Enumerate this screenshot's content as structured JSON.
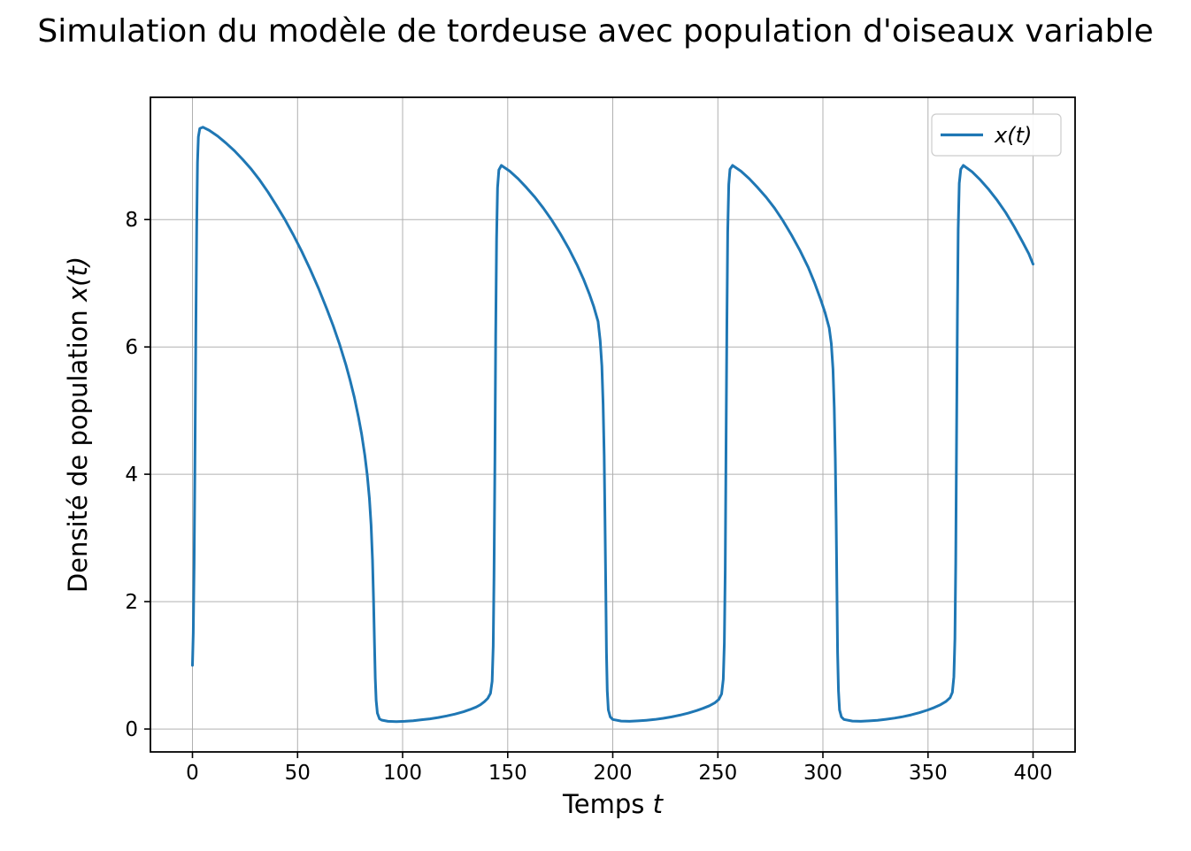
{
  "chart_data": {
    "type": "line",
    "title": "Simulation du modèle de tordeuse avec population d'oiseaux variable",
    "xlabel": "Temps t",
    "ylabel": "Densité de population x(t)",
    "xlabel_parts": {
      "prefix": "Temps ",
      "var": "t"
    },
    "ylabel_parts": {
      "prefix": "Densité de population ",
      "var": "x(t)"
    },
    "legend": {
      "position": "upper right",
      "entries": [
        {
          "label": "x(t)",
          "color": "#1f77b4"
        }
      ]
    },
    "grid": true,
    "grid_color": "#b0b0b0",
    "xlim": [
      -20,
      420
    ],
    "ylim": [
      -0.36,
      9.92
    ],
    "xticks": [
      0,
      50,
      100,
      150,
      200,
      250,
      300,
      350,
      400
    ],
    "yticks": [
      0,
      2,
      4,
      6,
      8
    ],
    "series": [
      {
        "name": "x(t)",
        "color": "#1f77b4",
        "points": [
          [
            0,
            1.0
          ],
          [
            0.4,
            1.5
          ],
          [
            0.8,
            2.6
          ],
          [
            1.2,
            4.2
          ],
          [
            1.6,
            6.2
          ],
          [
            2.0,
            7.9
          ],
          [
            2.4,
            8.9
          ],
          [
            2.8,
            9.3
          ],
          [
            3.5,
            9.43
          ],
          [
            5,
            9.45
          ],
          [
            8,
            9.4
          ],
          [
            12,
            9.31
          ],
          [
            16,
            9.2
          ],
          [
            20,
            9.08
          ],
          [
            24,
            8.94
          ],
          [
            28,
            8.79
          ],
          [
            32,
            8.62
          ],
          [
            36,
            8.43
          ],
          [
            40,
            8.22
          ],
          [
            44,
            8.0
          ],
          [
            48,
            7.76
          ],
          [
            52,
            7.5
          ],
          [
            56,
            7.22
          ],
          [
            60,
            6.92
          ],
          [
            64,
            6.59
          ],
          [
            67,
            6.33
          ],
          [
            70,
            6.04
          ],
          [
            73,
            5.72
          ],
          [
            75,
            5.48
          ],
          [
            77,
            5.21
          ],
          [
            79,
            4.9
          ],
          [
            80.5,
            4.63
          ],
          [
            82,
            4.3
          ],
          [
            83.2,
            3.98
          ],
          [
            84.2,
            3.62
          ],
          [
            85,
            3.2
          ],
          [
            85.7,
            2.65
          ],
          [
            86.2,
            2.0
          ],
          [
            86.6,
            1.35
          ],
          [
            87,
            0.8
          ],
          [
            87.4,
            0.45
          ],
          [
            88,
            0.25
          ],
          [
            89,
            0.16
          ],
          [
            90,
            0.14
          ],
          [
            93,
            0.12
          ],
          [
            97,
            0.115
          ],
          [
            101,
            0.12
          ],
          [
            105,
            0.13
          ],
          [
            109,
            0.145
          ],
          [
            113,
            0.16
          ],
          [
            117,
            0.18
          ],
          [
            121,
            0.205
          ],
          [
            125,
            0.235
          ],
          [
            129,
            0.27
          ],
          [
            132,
            0.305
          ],
          [
            135,
            0.345
          ],
          [
            137,
            0.38
          ],
          [
            139,
            0.43
          ],
          [
            140.5,
            0.48
          ],
          [
            141.8,
            0.56
          ],
          [
            142.6,
            0.75
          ],
          [
            143.1,
            1.3
          ],
          [
            143.5,
            2.4
          ],
          [
            143.9,
            4.2
          ],
          [
            144.3,
            6.2
          ],
          [
            144.7,
            7.7
          ],
          [
            145.2,
            8.5
          ],
          [
            145.8,
            8.78
          ],
          [
            147,
            8.85
          ],
          [
            151,
            8.76
          ],
          [
            155,
            8.64
          ],
          [
            159,
            8.5
          ],
          [
            163,
            8.35
          ],
          [
            167,
            8.18
          ],
          [
            171,
            7.99
          ],
          [
            175,
            7.78
          ],
          [
            179,
            7.55
          ],
          [
            183,
            7.29
          ],
          [
            186,
            7.07
          ],
          [
            189,
            6.82
          ],
          [
            191,
            6.63
          ],
          [
            193,
            6.4
          ],
          [
            194,
            6.1
          ],
          [
            194.8,
            5.7
          ],
          [
            195.4,
            5.1
          ],
          [
            195.9,
            4.3
          ],
          [
            196.3,
            3.3
          ],
          [
            196.7,
            2.1
          ],
          [
            197,
            1.2
          ],
          [
            197.4,
            0.6
          ],
          [
            197.9,
            0.3
          ],
          [
            198.8,
            0.19
          ],
          [
            200,
            0.15
          ],
          [
            204,
            0.125
          ],
          [
            208,
            0.12
          ],
          [
            212,
            0.127
          ],
          [
            216,
            0.137
          ],
          [
            220,
            0.15
          ],
          [
            224,
            0.168
          ],
          [
            228,
            0.19
          ],
          [
            232,
            0.218
          ],
          [
            236,
            0.25
          ],
          [
            240,
            0.29
          ],
          [
            243,
            0.325
          ],
          [
            246,
            0.365
          ],
          [
            248.5,
            0.41
          ],
          [
            250.5,
            0.465
          ],
          [
            251.8,
            0.55
          ],
          [
            252.6,
            0.78
          ],
          [
            253.1,
            1.35
          ],
          [
            253.5,
            2.5
          ],
          [
            253.9,
            4.4
          ],
          [
            254.3,
            6.4
          ],
          [
            254.7,
            7.8
          ],
          [
            255.2,
            8.55
          ],
          [
            255.8,
            8.79
          ],
          [
            257,
            8.85
          ],
          [
            261,
            8.76
          ],
          [
            265,
            8.64
          ],
          [
            269,
            8.5
          ],
          [
            273,
            8.35
          ],
          [
            277,
            8.18
          ],
          [
            281,
            7.98
          ],
          [
            285,
            7.76
          ],
          [
            289,
            7.52
          ],
          [
            293,
            7.25
          ],
          [
            296,
            7.01
          ],
          [
            299,
            6.74
          ],
          [
            301,
            6.54
          ],
          [
            303,
            6.3
          ],
          [
            304,
            6.05
          ],
          [
            304.8,
            5.65
          ],
          [
            305.4,
            5.05
          ],
          [
            305.9,
            4.25
          ],
          [
            306.3,
            3.25
          ],
          [
            306.7,
            2.1
          ],
          [
            307,
            1.2
          ],
          [
            307.4,
            0.6
          ],
          [
            307.9,
            0.3
          ],
          [
            308.8,
            0.19
          ],
          [
            310,
            0.15
          ],
          [
            314,
            0.125
          ],
          [
            318,
            0.12
          ],
          [
            322,
            0.128
          ],
          [
            326,
            0.138
          ],
          [
            330,
            0.152
          ],
          [
            334,
            0.17
          ],
          [
            338,
            0.193
          ],
          [
            342,
            0.222
          ],
          [
            346,
            0.257
          ],
          [
            350,
            0.3
          ],
          [
            353,
            0.337
          ],
          [
            356,
            0.382
          ],
          [
            358.5,
            0.43
          ],
          [
            360.5,
            0.49
          ],
          [
            361.6,
            0.575
          ],
          [
            362.3,
            0.82
          ],
          [
            362.8,
            1.42
          ],
          [
            363.2,
            2.6
          ],
          [
            363.6,
            4.5
          ],
          [
            364.0,
            6.5
          ],
          [
            364.4,
            7.85
          ],
          [
            364.9,
            8.57
          ],
          [
            365.6,
            8.79
          ],
          [
            366.8,
            8.85
          ],
          [
            371,
            8.75
          ],
          [
            375,
            8.62
          ],
          [
            379,
            8.47
          ],
          [
            383,
            8.3
          ],
          [
            387,
            8.11
          ],
          [
            391,
            7.89
          ],
          [
            395,
            7.65
          ],
          [
            398,
            7.46
          ],
          [
            400,
            7.3
          ]
        ]
      }
    ]
  }
}
